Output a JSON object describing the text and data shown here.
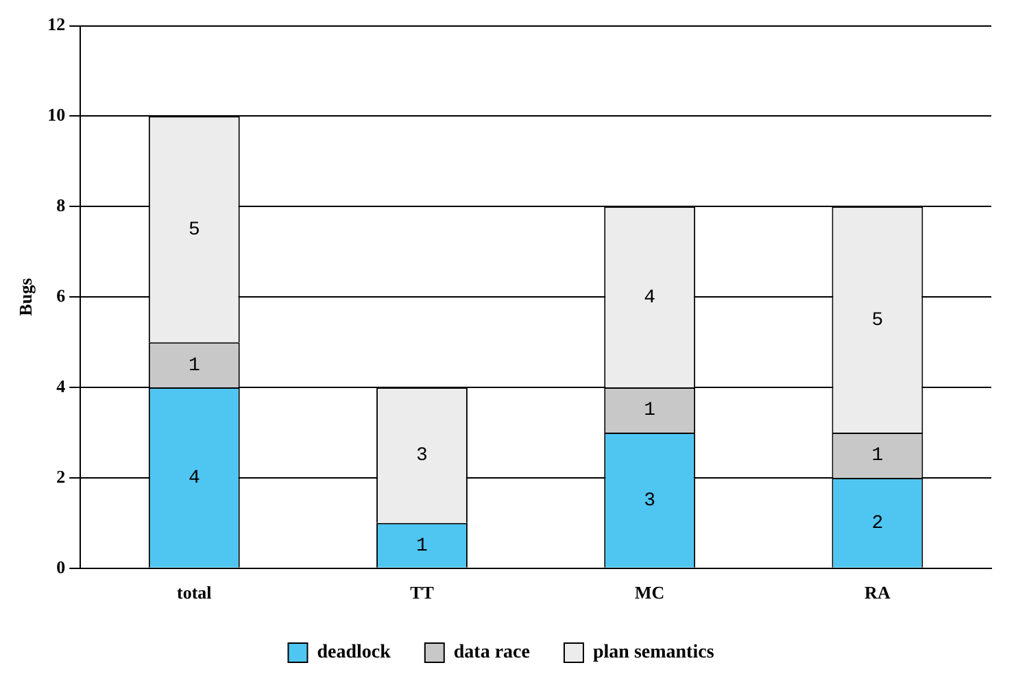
{
  "chart_data": {
    "type": "bar",
    "ylabel": "Bugs",
    "categories": [
      "total",
      "TT",
      "MC",
      "RA"
    ],
    "stacked": true,
    "series": [
      {
        "name": "deadlock",
        "color": "#4fc6f2",
        "values": [
          4,
          1,
          3,
          2
        ],
        "value_labels": [
          "4",
          "1",
          "3",
          "2"
        ]
      },
      {
        "name": "data race",
        "color": "#c8c8c8",
        "values": [
          1,
          0,
          1,
          1
        ],
        "value_labels": [
          "1",
          null,
          "1",
          "1"
        ]
      },
      {
        "name": "plan semantics",
        "color": "#ececec",
        "values": [
          5,
          3,
          4,
          5
        ],
        "value_labels": [
          "5",
          "3",
          "4",
          "5"
        ]
      }
    ],
    "ylim": [
      0,
      12
    ],
    "yticks": [
      0,
      2,
      4,
      6,
      8,
      10,
      12
    ],
    "grid": "y",
    "legend": "bottom"
  }
}
